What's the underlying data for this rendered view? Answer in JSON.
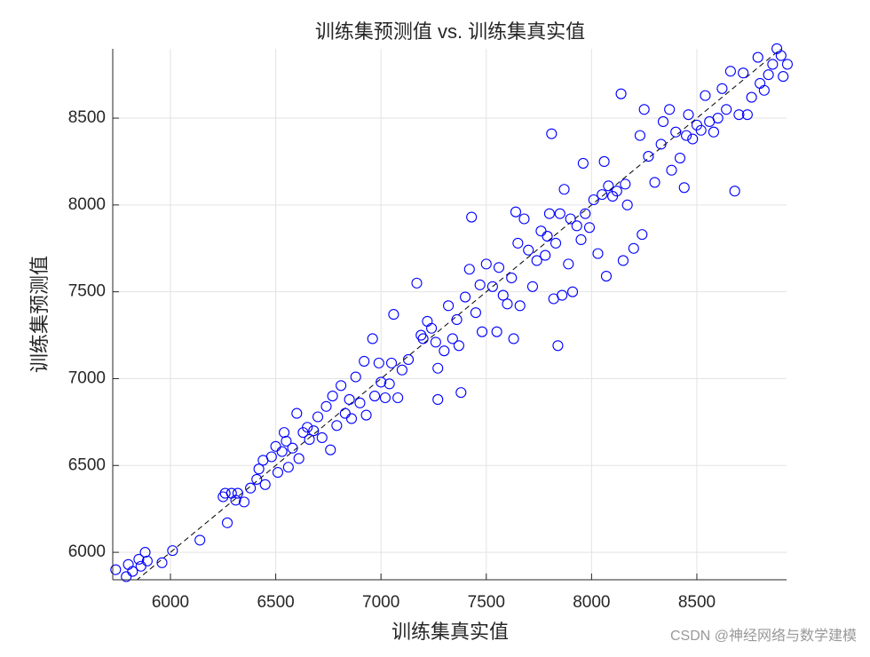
{
  "chart_data": {
    "type": "scatter",
    "title": "训练集预测值 vs. 训练集真实值",
    "x_label": "训练集真实值",
    "y_label": "训练集预测值",
    "watermark": "CSDN @神经网络与数学建模",
    "color": "#0000ff",
    "grid": true,
    "diagonal": true,
    "xlim": [
      5726,
      8926
    ],
    "ylim": [
      5842,
      8899
    ],
    "xticks": [
      6000,
      6500,
      7000,
      7500,
      8000,
      8500
    ],
    "yticks": [
      6000,
      6500,
      7000,
      7500,
      8000,
      8500
    ],
    "x": [
      5740,
      5790,
      5800,
      5820,
      5850,
      5860,
      5880,
      5890,
      5960,
      6010,
      6140,
      6250,
      6260,
      6270,
      6290,
      6310,
      6320,
      6350,
      6380,
      6410,
      6420,
      6440,
      6450,
      6480,
      6500,
      6510,
      6530,
      6540,
      6550,
      6560,
      6580,
      6600,
      6610,
      6630,
      6650,
      6660,
      6680,
      6700,
      6720,
      6740,
      6760,
      6770,
      6790,
      6810,
      6830,
      6850,
      6860,
      6880,
      6900,
      6920,
      6930,
      6960,
      6970,
      6990,
      7000,
      7020,
      7040,
      7050,
      7060,
      7080,
      7100,
      7130,
      7170,
      7190,
      7200,
      7220,
      7240,
      7260,
      7270,
      7270,
      7300,
      7320,
      7340,
      7360,
      7370,
      7380,
      7400,
      7420,
      7430,
      7450,
      7470,
      7480,
      7500,
      7530,
      7550,
      7560,
      7580,
      7600,
      7620,
      7630,
      7640,
      7650,
      7660,
      7680,
      7700,
      7720,
      7740,
      7760,
      7780,
      7790,
      7800,
      7810,
      7820,
      7830,
      7840,
      7850,
      7860,
      7870,
      7890,
      7900,
      7910,
      7930,
      7950,
      7960,
      7970,
      7990,
      8010,
      8030,
      8050,
      8060,
      8070,
      8080,
      8100,
      8120,
      8140,
      8150,
      8160,
      8170,
      8200,
      8230,
      8240,
      8250,
      8270,
      8300,
      8330,
      8340,
      8370,
      8380,
      8400,
      8420,
      8440,
      8450,
      8460,
      8480,
      8500,
      8520,
      8540,
      8560,
      8580,
      8600,
      8620,
      8640,
      8660,
      8680,
      8700,
      8720,
      8740,
      8760,
      8790,
      8800,
      8820,
      8840,
      8860,
      8880,
      8900,
      8910,
      8930
    ],
    "values": [
      5900,
      5860,
      5930,
      5890,
      5960,
      5920,
      6000,
      5950,
      5940,
      6010,
      6070,
      6320,
      6340,
      6170,
      6340,
      6300,
      6340,
      6290,
      6370,
      6420,
      6480,
      6530,
      6390,
      6550,
      6610,
      6460,
      6580,
      6690,
      6640,
      6490,
      6600,
      6800,
      6540,
      6690,
      6720,
      6650,
      6700,
      6780,
      6660,
      6840,
      6590,
      6900,
      6730,
      6960,
      6800,
      6880,
      6770,
      7010,
      6860,
      7100,
      6790,
      7230,
      6900,
      7090,
      6980,
      6890,
      6970,
      7090,
      7370,
      6890,
      7050,
      7110,
      7550,
      7250,
      7230,
      7330,
      7290,
      7210,
      6880,
      7060,
      7160,
      7420,
      7230,
      7340,
      7190,
      6920,
      7470,
      7630,
      7930,
      7380,
      7540,
      7270,
      7660,
      7530,
      7270,
      7640,
      7480,
      7430,
      7580,
      7230,
      7960,
      7780,
      7420,
      7920,
      7740,
      7530,
      7680,
      7850,
      7710,
      7820,
      7950,
      8410,
      7460,
      7780,
      7190,
      7950,
      7480,
      8090,
      7660,
      7920,
      7500,
      7880,
      7800,
      8240,
      7950,
      7870,
      8030,
      7720,
      8060,
      8250,
      7590,
      8110,
      8050,
      8080,
      8640,
      7680,
      8120,
      8000,
      7750,
      8400,
      7830,
      8550,
      8280,
      8130,
      8350,
      8480,
      8550,
      8200,
      8420,
      8270,
      8100,
      8400,
      8520,
      8380,
      8460,
      8430,
      8630,
      8480,
      8420,
      8500,
      8670,
      8550,
      8770,
      8080,
      8520,
      8760,
      8520,
      8620,
      8850,
      8700,
      8660,
      8750,
      8810,
      8900,
      8860,
      8740,
      8810
    ]
  }
}
